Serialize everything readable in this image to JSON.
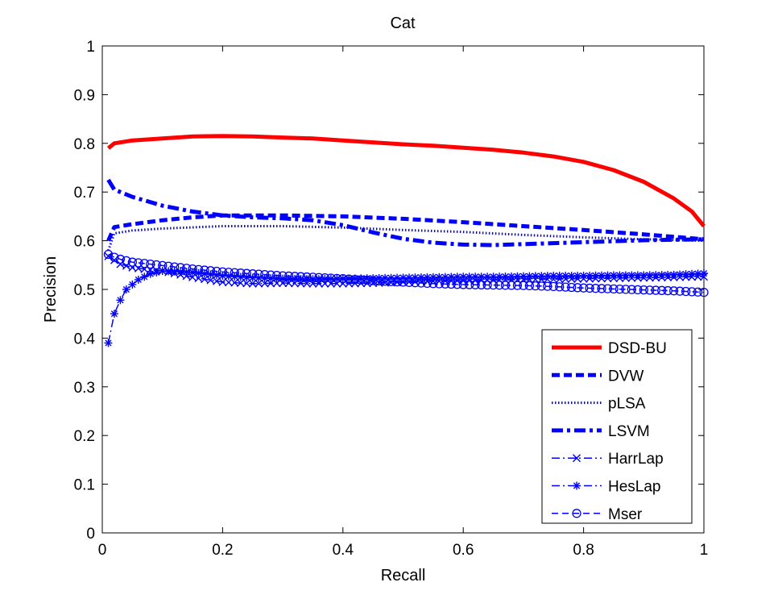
{
  "chart_data": {
    "type": "line",
    "title": "Cat",
    "xlabel": "Recall",
    "ylabel": "Precision",
    "xlim": [
      0,
      1
    ],
    "ylim": [
      0,
      1
    ],
    "xticks": [
      "0",
      "0.2",
      "0.4",
      "0.6",
      "0.8",
      "1"
    ],
    "yticks": [
      "0",
      "0.1",
      "0.2",
      "0.3",
      "0.4",
      "0.5",
      "0.6",
      "0.7",
      "0.8",
      "0.9",
      "1"
    ],
    "grid": false,
    "legend_position": "bottom-right",
    "series": [
      {
        "name": "DSD-BU",
        "color": "#ff0000",
        "style": "solid-thick",
        "x": [
          0.01,
          0.02,
          0.05,
          0.1,
          0.15,
          0.2,
          0.25,
          0.3,
          0.35,
          0.4,
          0.45,
          0.5,
          0.55,
          0.6,
          0.65,
          0.7,
          0.75,
          0.8,
          0.85,
          0.9,
          0.95,
          0.98,
          1.0
        ],
        "y": [
          0.79,
          0.8,
          0.806,
          0.81,
          0.814,
          0.815,
          0.814,
          0.812,
          0.81,
          0.806,
          0.802,
          0.798,
          0.795,
          0.791,
          0.787,
          0.781,
          0.773,
          0.762,
          0.745,
          0.721,
          0.687,
          0.66,
          0.63
        ]
      },
      {
        "name": "DVW",
        "color": "#0000ff",
        "style": "dashed-thick",
        "x": [
          0.01,
          0.02,
          0.05,
          0.1,
          0.15,
          0.2,
          0.3,
          0.4,
          0.5,
          0.6,
          0.7,
          0.8,
          0.9,
          1.0
        ],
        "y": [
          0.6,
          0.628,
          0.634,
          0.642,
          0.648,
          0.652,
          0.652,
          0.65,
          0.645,
          0.638,
          0.63,
          0.622,
          0.613,
          0.603
        ]
      },
      {
        "name": "pLSA",
        "color": "#0000ff",
        "style": "dotted",
        "x": [
          0.01,
          0.02,
          0.05,
          0.1,
          0.2,
          0.3,
          0.4,
          0.5,
          0.6,
          0.7,
          0.8,
          0.9,
          1.0
        ],
        "y": [
          0.58,
          0.615,
          0.621,
          0.625,
          0.63,
          0.63,
          0.627,
          0.622,
          0.618,
          0.612,
          0.607,
          0.603,
          0.6
        ]
      },
      {
        "name": "LSVM",
        "color": "#0000ff",
        "style": "dashdot-thick",
        "x": [
          0.01,
          0.02,
          0.05,
          0.1,
          0.15,
          0.2,
          0.25,
          0.3,
          0.35,
          0.4,
          0.45,
          0.5,
          0.55,
          0.6,
          0.65,
          0.7,
          0.75,
          0.8,
          0.85,
          0.9,
          0.95,
          1.0
        ],
        "y": [
          0.725,
          0.705,
          0.69,
          0.672,
          0.66,
          0.652,
          0.648,
          0.646,
          0.642,
          0.632,
          0.617,
          0.604,
          0.596,
          0.592,
          0.591,
          0.593,
          0.595,
          0.597,
          0.599,
          0.601,
          0.602,
          0.603
        ]
      },
      {
        "name": "HarrLap",
        "color": "#0000ff",
        "style": "dashdot-x",
        "x": [
          0.01,
          0.02,
          0.03,
          0.05,
          0.08,
          0.1,
          0.15,
          0.2,
          0.25,
          0.3,
          0.35,
          0.4,
          0.45,
          0.5,
          0.55,
          0.6,
          0.65,
          0.7,
          0.75,
          0.8,
          0.85,
          0.9,
          0.95,
          1.0
        ],
        "y": [
          0.568,
          0.56,
          0.552,
          0.545,
          0.54,
          0.538,
          0.525,
          0.515,
          0.512,
          0.513,
          0.512,
          0.512,
          0.513,
          0.515,
          0.517,
          0.518,
          0.519,
          0.52,
          0.521,
          0.522,
          0.523,
          0.524,
          0.525,
          0.526
        ]
      },
      {
        "name": "HesLap",
        "color": "#0000ff",
        "style": "dashdot-star",
        "x": [
          0.01,
          0.02,
          0.03,
          0.04,
          0.06,
          0.08,
          0.1,
          0.15,
          0.2,
          0.25,
          0.3,
          0.35,
          0.4,
          0.45,
          0.5,
          0.55,
          0.6,
          0.65,
          0.7,
          0.75,
          0.8,
          0.85,
          0.9,
          0.95,
          1.0
        ],
        "y": [
          0.39,
          0.45,
          0.478,
          0.5,
          0.52,
          0.532,
          0.538,
          0.535,
          0.528,
          0.524,
          0.522,
          0.521,
          0.522,
          0.523,
          0.524,
          0.525,
          0.526,
          0.526,
          0.527,
          0.528,
          0.528,
          0.529,
          0.529,
          0.53,
          0.533
        ]
      },
      {
        "name": "Mser",
        "color": "#0000ff",
        "style": "dashed-circle",
        "x": [
          0.01,
          0.02,
          0.03,
          0.05,
          0.08,
          0.1,
          0.15,
          0.2,
          0.25,
          0.3,
          0.35,
          0.4,
          0.45,
          0.5,
          0.55,
          0.6,
          0.65,
          0.7,
          0.75,
          0.8,
          0.85,
          0.9,
          0.95,
          1.0
        ],
        "y": [
          0.572,
          0.566,
          0.562,
          0.556,
          0.552,
          0.549,
          0.542,
          0.536,
          0.532,
          0.528,
          0.525,
          0.522,
          0.518,
          0.515,
          0.512,
          0.51,
          0.509,
          0.508,
          0.506,
          0.503,
          0.501,
          0.499,
          0.497,
          0.494
        ]
      }
    ]
  }
}
